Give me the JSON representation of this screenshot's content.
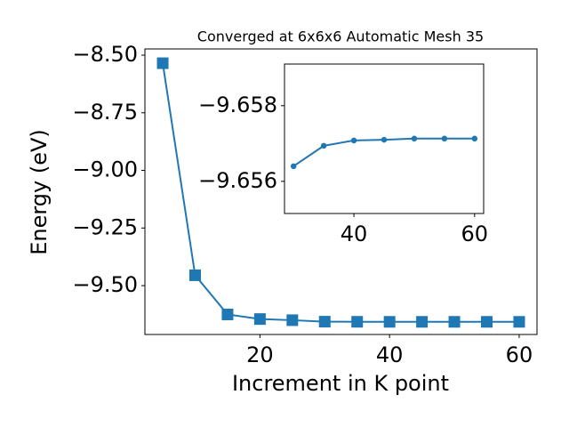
{
  "chart_data": [
    {
      "type": "line",
      "title": "Converged at 6x6x6 Automatic Mesh 35",
      "xlabel": "Increment in K point",
      "ylabel": "Energy (eV)",
      "x": [
        5,
        10,
        15,
        20,
        25,
        30,
        35,
        40,
        45,
        50,
        55,
        60
      ],
      "series": [
        {
          "color": "#1f77b4",
          "marker": "square",
          "values": [
            -8.535,
            -9.455,
            -9.625,
            -9.645,
            -9.65,
            -9.6564,
            -9.6569,
            -9.6571,
            -9.6571,
            -9.6571,
            -9.6571,
            -9.6571
          ]
        }
      ],
      "xlim": [
        2.25,
        62.75
      ],
      "ylim": [
        -9.712,
        -8.473
      ],
      "xticks": [
        20,
        40,
        60
      ],
      "yticks": [
        {
          "value": -8.5,
          "label": "−8.50"
        },
        {
          "value": -8.75,
          "label": "−8.75"
        },
        {
          "value": -9.0,
          "label": "−9.00"
        },
        {
          "value": -9.25,
          "label": "−9.25"
        },
        {
          "value": -9.5,
          "label": "−9.50"
        }
      ]
    },
    {
      "type": "line",
      "x": [
        30,
        35,
        40,
        45,
        50,
        55,
        60
      ],
      "series": [
        {
          "color": "#1f77b4",
          "marker": "circle",
          "values": [
            -9.6564,
            -9.65694,
            -9.65708,
            -9.6571,
            -9.65713,
            -9.65713,
            -9.65713
          ]
        }
      ],
      "xlim": [
        28.5,
        61.5
      ],
      "ylim": [
        -9.65515,
        -9.6591
      ],
      "xticks": [
        40,
        60
      ],
      "yticks": [
        {
          "value": -9.658,
          "label": "−9.658"
        },
        {
          "value": -9.656,
          "label": "−9.656"
        }
      ]
    }
  ]
}
